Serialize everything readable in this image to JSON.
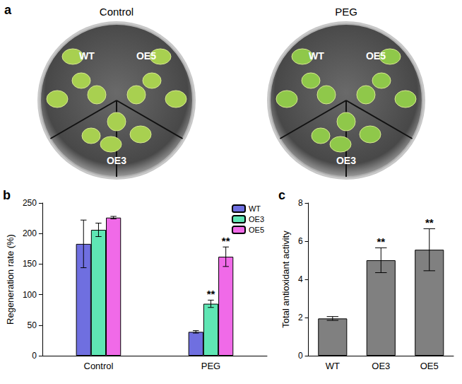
{
  "photo": {
    "panel": "a",
    "dishes": [
      {
        "title": "Control",
        "labels": [
          "WT",
          "OE5",
          "OE3"
        ]
      },
      {
        "title": "PEG",
        "labels": [
          "WT",
          "OE5",
          "OE3"
        ]
      }
    ]
  },
  "chart_data": [
    {
      "panel": "b",
      "type": "bar",
      "y_label": "Regeneration rate (%)",
      "categories": [
        "Control",
        "PEG"
      ],
      "series": [
        {
          "name": "WT",
          "color": "#6f6fe0",
          "values": [
            183,
            39
          ],
          "errors": [
            39,
            2
          ]
        },
        {
          "name": "OE3",
          "color": "#5fe6b4",
          "values": [
            206,
            85
          ],
          "errors": [
            11,
            6
          ]
        },
        {
          "name": "OE5",
          "color": "#f06ae8",
          "values": [
            226,
            162
          ],
          "errors": [
            2,
            16
          ]
        }
      ],
      "ylim": [
        0,
        250
      ],
      "yticks": [
        0,
        50,
        100,
        150,
        200,
        250
      ],
      "grid": false,
      "legend": "upper right",
      "annotations": [
        {
          "category": "PEG",
          "series": "OE3",
          "text": "**"
        },
        {
          "category": "PEG",
          "series": "OE5",
          "text": "**"
        }
      ]
    },
    {
      "panel": "c",
      "type": "bar",
      "y_label": "Total antioxidant activity",
      "categories": [
        "WT",
        "OE3",
        "OE5"
      ],
      "values": [
        1.95,
        5.0,
        5.55
      ],
      "errors": [
        0.1,
        0.65,
        1.1
      ],
      "color": "#808080",
      "ylim": [
        0,
        8
      ],
      "yticks": [
        0,
        2,
        4,
        6,
        8
      ],
      "grid": false,
      "annotations": [
        {
          "category": "OE3",
          "text": "**"
        },
        {
          "category": "OE5",
          "text": "**"
        }
      ]
    }
  ]
}
